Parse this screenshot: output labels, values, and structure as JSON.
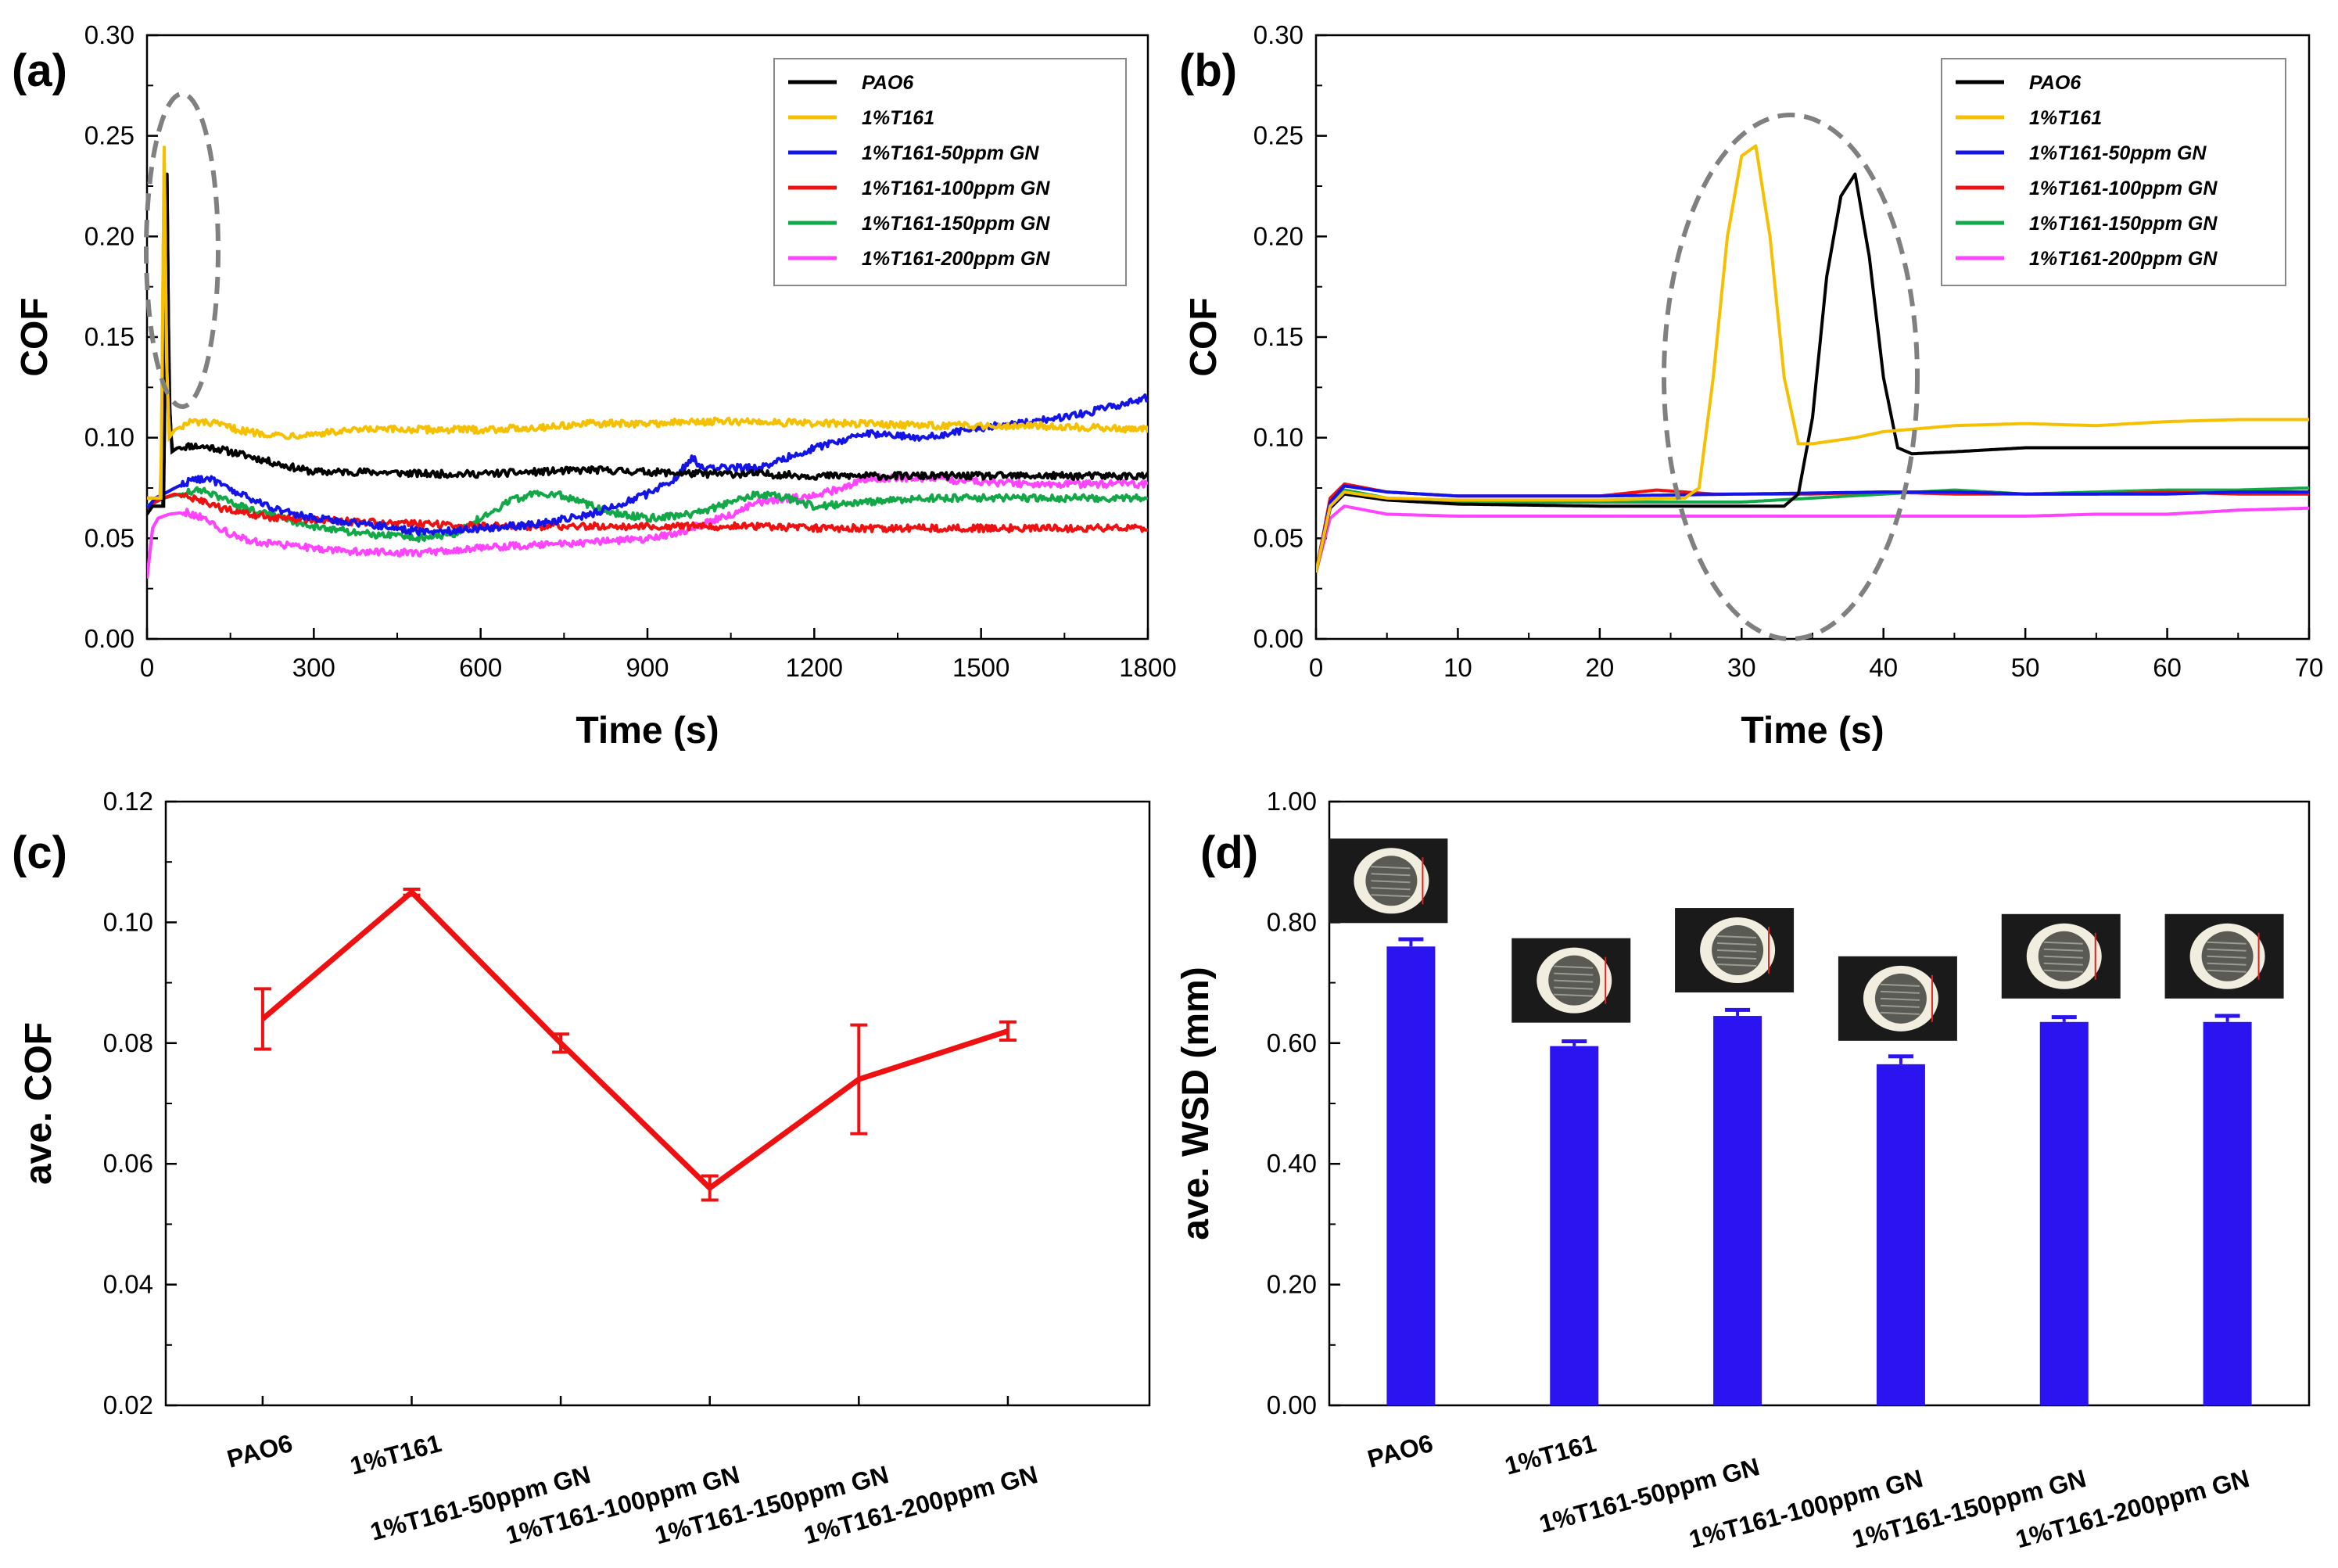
{
  "figure": {
    "colors": {
      "PAO6": "#000000",
      "1%T161": "#f5c000",
      "1%T161-50ppm GN": "#1414e6",
      "1%T161-100ppm GN": "#ee1111",
      "1%T161-150ppm GN": "#12a848",
      "1%T161-200ppm GN": "#ff44ff",
      "bar": "#2b14f0",
      "highlight_ellipse": "#808080"
    }
  },
  "chart_data": [
    {
      "id": "a",
      "panel_label": "(a)",
      "type": "line",
      "title": "",
      "xlabel": "Time (s)",
      "ylabel": "COF",
      "xlim": [
        0,
        1800
      ],
      "ylim": [
        0,
        0.3
      ],
      "xticks": [
        0,
        300,
        600,
        900,
        1200,
        1500,
        1800
      ],
      "yticks": [
        0.0,
        0.05,
        0.1,
        0.15,
        0.2,
        0.25,
        0.3
      ],
      "ytick_labels": [
        "0.00",
        "0.05",
        "0.10",
        "0.15",
        "0.20",
        "0.25",
        "0.30"
      ],
      "legend_position": "top-right",
      "highlight": "dashed ellipse around initial COF spikes",
      "series": [
        {
          "name": "PAO6",
          "x": [
            0,
            10,
            25,
            30,
            36,
            40,
            45,
            55,
            80,
            120,
            180,
            250,
            300,
            400,
            500,
            600,
            700,
            800,
            900,
            1000,
            1100,
            1200,
            1300,
            1400,
            1500,
            1600,
            1700,
            1800
          ],
          "y": [
            0.062,
            0.066,
            0.066,
            0.066,
            0.231,
            0.12,
            0.093,
            0.095,
            0.096,
            0.095,
            0.091,
            0.086,
            0.083,
            0.083,
            0.082,
            0.082,
            0.083,
            0.084,
            0.083,
            0.082,
            0.082,
            0.081,
            0.081,
            0.081,
            0.081,
            0.081,
            0.081,
            0.081
          ]
        },
        {
          "name": "1%T161",
          "x": [
            0,
            10,
            25,
            31,
            35,
            40,
            50,
            80,
            120,
            180,
            250,
            300,
            400,
            500,
            600,
            700,
            800,
            900,
            1000,
            1100,
            1200,
            1300,
            1400,
            1500,
            1600,
            1700,
            1800
          ],
          "y": [
            0.07,
            0.07,
            0.07,
            0.245,
            0.14,
            0.1,
            0.104,
            0.108,
            0.107,
            0.103,
            0.101,
            0.102,
            0.104,
            0.104,
            0.104,
            0.105,
            0.107,
            0.107,
            0.108,
            0.108,
            0.107,
            0.107,
            0.106,
            0.106,
            0.106,
            0.105,
            0.104
          ]
        },
        {
          "name": "1%T161-50ppm GN",
          "x": [
            0,
            15,
            30,
            50,
            80,
            110,
            150,
            200,
            250,
            300,
            400,
            500,
            600,
            700,
            800,
            900,
            950,
            980,
            1000,
            1100,
            1200,
            1300,
            1400,
            1500,
            1600,
            1700,
            1800
          ],
          "y": [
            0.065,
            0.07,
            0.072,
            0.075,
            0.079,
            0.08,
            0.074,
            0.068,
            0.063,
            0.06,
            0.057,
            0.053,
            0.055,
            0.057,
            0.062,
            0.072,
            0.08,
            0.09,
            0.085,
            0.085,
            0.095,
            0.102,
            0.1,
            0.105,
            0.108,
            0.113,
            0.12
          ]
        },
        {
          "name": "1%T161-100ppm GN",
          "x": [
            0,
            15,
            30,
            50,
            80,
            120,
            160,
            200,
            250,
            300,
            400,
            500,
            600,
            700,
            800,
            900,
            1000,
            1100,
            1200,
            1300,
            1400,
            1500,
            1600,
            1700,
            1800
          ],
          "y": [
            0.065,
            0.068,
            0.07,
            0.072,
            0.07,
            0.066,
            0.063,
            0.061,
            0.06,
            0.059,
            0.058,
            0.057,
            0.056,
            0.056,
            0.056,
            0.056,
            0.056,
            0.056,
            0.055,
            0.055,
            0.055,
            0.055,
            0.055,
            0.055,
            0.055
          ]
        },
        {
          "name": "1%T161-150ppm GN",
          "x": [
            0,
            15,
            30,
            60,
            100,
            150,
            200,
            300,
            400,
            500,
            550,
            600,
            650,
            700,
            750,
            800,
            850,
            900,
            950,
            1000,
            1050,
            1100,
            1150,
            1200,
            1300,
            1400,
            1500,
            1600,
            1700,
            1800
          ],
          "y": [
            0.066,
            0.068,
            0.07,
            0.072,
            0.074,
            0.068,
            0.063,
            0.056,
            0.052,
            0.05,
            0.052,
            0.06,
            0.068,
            0.073,
            0.071,
            0.066,
            0.062,
            0.06,
            0.061,
            0.063,
            0.068,
            0.072,
            0.07,
            0.066,
            0.068,
            0.07,
            0.07,
            0.07,
            0.07,
            0.07
          ]
        },
        {
          "name": "1%T161-200ppm GN",
          "x": [
            0,
            10,
            20,
            40,
            70,
            100,
            150,
            200,
            300,
            400,
            500,
            600,
            700,
            800,
            900,
            950,
            1000,
            1050,
            1100,
            1150,
            1200,
            1250,
            1300,
            1400,
            1500,
            1600,
            1700,
            1800
          ],
          "y": [
            0.03,
            0.055,
            0.06,
            0.062,
            0.063,
            0.06,
            0.052,
            0.048,
            0.045,
            0.043,
            0.043,
            0.045,
            0.047,
            0.048,
            0.05,
            0.052,
            0.057,
            0.062,
            0.068,
            0.07,
            0.071,
            0.075,
            0.08,
            0.08,
            0.078,
            0.077,
            0.077,
            0.077
          ]
        }
      ]
    },
    {
      "id": "b",
      "panel_label": "(b)",
      "type": "line",
      "title": "",
      "xlabel": "Time (s)",
      "ylabel": "COF",
      "xlim": [
        0,
        70
      ],
      "ylim": [
        0,
        0.3
      ],
      "xticks": [
        0,
        10,
        20,
        30,
        40,
        50,
        60,
        70
      ],
      "yticks": [
        0.0,
        0.05,
        0.1,
        0.15,
        0.2,
        0.25,
        0.3
      ],
      "ytick_labels": [
        "0.00",
        "0.05",
        "0.10",
        "0.15",
        "0.20",
        "0.25",
        "0.30"
      ],
      "legend_position": "top-right",
      "highlight": "dashed ellipse around COF peaks at ~30-40 s",
      "series": [
        {
          "name": "PAO6",
          "x": [
            0,
            1,
            2,
            5,
            10,
            20,
            30,
            33,
            34,
            35,
            36,
            37,
            38,
            39,
            40,
            41,
            42,
            45,
            50,
            55,
            60,
            65,
            70
          ],
          "y": [
            0.033,
            0.065,
            0.072,
            0.069,
            0.067,
            0.066,
            0.066,
            0.066,
            0.072,
            0.11,
            0.18,
            0.22,
            0.231,
            0.19,
            0.13,
            0.095,
            0.092,
            0.093,
            0.095,
            0.095,
            0.095,
            0.095,
            0.095
          ]
        },
        {
          "name": "1%T161",
          "x": [
            0,
            1,
            2,
            5,
            10,
            20,
            26,
            27,
            28,
            29,
            30,
            31,
            32,
            33,
            34,
            35,
            38,
            40,
            45,
            50,
            55,
            60,
            65,
            70
          ],
          "y": [
            0.033,
            0.066,
            0.073,
            0.07,
            0.069,
            0.069,
            0.07,
            0.075,
            0.13,
            0.2,
            0.24,
            0.245,
            0.2,
            0.13,
            0.097,
            0.097,
            0.1,
            0.103,
            0.106,
            0.107,
            0.106,
            0.108,
            0.109,
            0.109
          ]
        },
        {
          "name": "1%T161-50ppm GN",
          "x": [
            0,
            1,
            2,
            5,
            10,
            20,
            30,
            40,
            45,
            50,
            55,
            60,
            65,
            70
          ],
          "y": [
            0.033,
            0.068,
            0.076,
            0.073,
            0.071,
            0.071,
            0.072,
            0.073,
            0.073,
            0.072,
            0.072,
            0.072,
            0.073,
            0.073
          ]
        },
        {
          "name": "1%T161-100ppm GN",
          "x": [
            0,
            1,
            2,
            5,
            10,
            15,
            20,
            24,
            28,
            30,
            35,
            40,
            45,
            50,
            55,
            60,
            65,
            70
          ],
          "y": [
            0.033,
            0.07,
            0.077,
            0.073,
            0.071,
            0.071,
            0.071,
            0.074,
            0.072,
            0.072,
            0.072,
            0.073,
            0.072,
            0.072,
            0.072,
            0.073,
            0.072,
            0.072
          ]
        },
        {
          "name": "1%T161-150ppm GN",
          "x": [
            0,
            1,
            2,
            5,
            10,
            20,
            30,
            35,
            40,
            45,
            50,
            55,
            60,
            65,
            70
          ],
          "y": [
            0.033,
            0.067,
            0.074,
            0.07,
            0.068,
            0.068,
            0.068,
            0.07,
            0.072,
            0.074,
            0.072,
            0.073,
            0.074,
            0.074,
            0.075
          ]
        },
        {
          "name": "1%T161-200ppm GN",
          "x": [
            0,
            1,
            2,
            5,
            10,
            20,
            30,
            35,
            40,
            45,
            50,
            55,
            60,
            65,
            70
          ],
          "y": [
            0.033,
            0.06,
            0.066,
            0.062,
            0.061,
            0.061,
            0.061,
            0.061,
            0.061,
            0.061,
            0.061,
            0.062,
            0.062,
            0.064,
            0.065
          ]
        }
      ]
    },
    {
      "id": "c",
      "panel_label": "(c)",
      "type": "line",
      "title": "",
      "xlabel": "",
      "ylabel": "ave. COF",
      "ylim": [
        0.02,
        0.12
      ],
      "yticks": [
        0.02,
        0.04,
        0.06,
        0.08,
        0.1,
        0.12
      ],
      "ytick_labels": [
        "0.02",
        "0.04",
        "0.06",
        "0.08",
        "0.10",
        "0.12"
      ],
      "categories": [
        "PAO6",
        "1%T161",
        "1%T161-50ppm GN",
        "1%T161-100ppm GN",
        "1%T161-150ppm GN",
        "1%T161-200ppm GN"
      ],
      "values": [
        0.084,
        0.105,
        0.08,
        0.056,
        0.074,
        0.082
      ],
      "errors": [
        0.005,
        0.0005,
        0.0015,
        0.002,
        0.009,
        0.0015
      ],
      "color": "#ee1111"
    },
    {
      "id": "d",
      "panel_label": "(d)",
      "type": "bar",
      "title": "",
      "xlabel": "",
      "ylabel": "ave. WSD (mm)",
      "ylim": [
        0.0,
        1.0
      ],
      "yticks": [
        0.0,
        0.2,
        0.4,
        0.6,
        0.8,
        1.0
      ],
      "ytick_labels": [
        "0.00",
        "0.20",
        "0.40",
        "0.60",
        "0.80",
        "1.00"
      ],
      "categories": [
        "PAO6",
        "1%T161",
        "1%T161-50ppm GN",
        "1%T161-100ppm GN",
        "1%T161-150ppm GN",
        "1%T161-200ppm GN"
      ],
      "values": [
        0.76,
        0.595,
        0.645,
        0.565,
        0.635,
        0.635
      ],
      "errors": [
        0.012,
        0.008,
        0.01,
        0.013,
        0.008,
        0.01
      ],
      "inset_images": "wear scar micrograph above each bar"
    }
  ]
}
